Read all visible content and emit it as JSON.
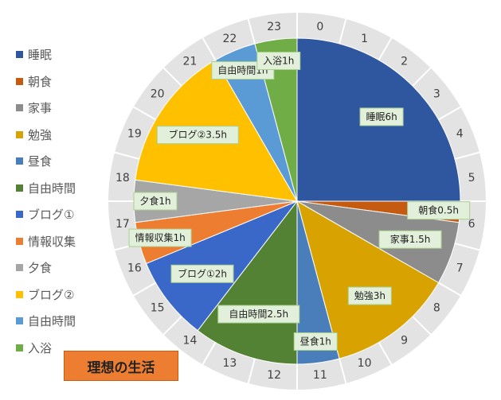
{
  "chart_data": {
    "type": "pie",
    "title": "理想の生活",
    "unit": "h",
    "categories": [
      "睡眠",
      "朝食",
      "家事",
      "勉強",
      "昼食",
      "自由時間",
      "ブログ①",
      "情報収集",
      "夕食",
      "ブログ②",
      "自由時間",
      "入浴"
    ],
    "values": [
      6,
      0.5,
      1.5,
      3,
      1,
      2.5,
      2,
      1,
      1,
      3.5,
      1,
      1
    ],
    "data_labels": [
      "睡眠6h",
      "朝食0.5h",
      "家事1.5h",
      "勉強3h",
      "昼食1h",
      "自由時間2.5h",
      "ブログ①2h",
      "情報収集1h",
      "夕食1h",
      "ブログ②3.5h",
      "自由時間1h",
      "入浴1h"
    ],
    "colors": [
      "#2f57a0",
      "#c55a11",
      "#8c8c8c",
      "#d8a200",
      "#4a7ebb",
      "#548235",
      "#3a68c8",
      "#ed7d31",
      "#a6a6a6",
      "#ffc000",
      "#5b9bd5",
      "#70ad47"
    ],
    "clock_labels": [
      "0",
      "1",
      "2",
      "3",
      "4",
      "5",
      "6",
      "7",
      "8",
      "9",
      "10",
      "11",
      "12",
      "13",
      "14",
      "15",
      "16",
      "17",
      "18",
      "19",
      "20",
      "21",
      "22",
      "23"
    ],
    "legend_position": "left"
  }
}
